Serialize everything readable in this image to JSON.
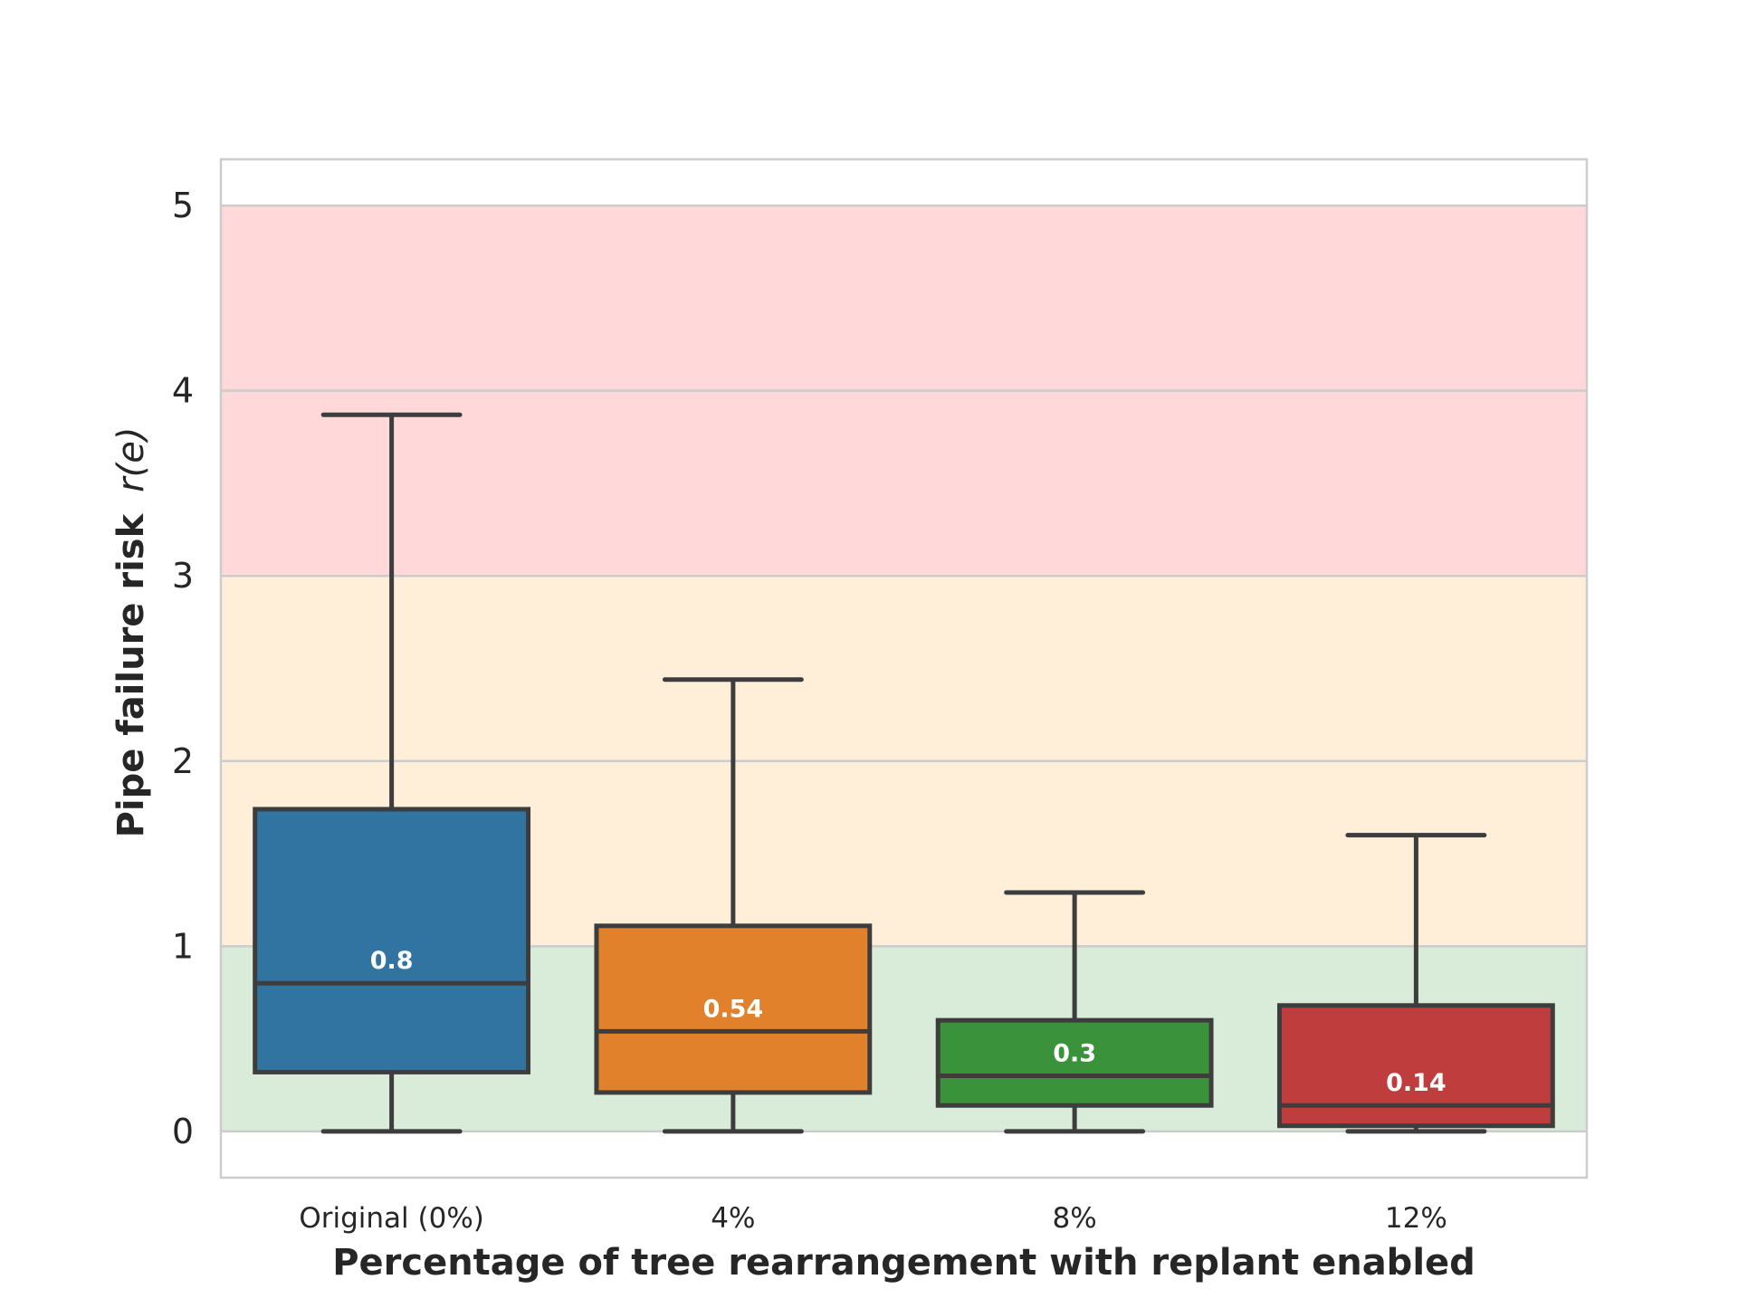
{
  "chart_data": {
    "type": "box",
    "xlabel": "Percentage of tree rearrangement with replant enabled",
    "ylabel_text": "Pipe failure risk",
    "ylabel_math": "r(e)",
    "ylim": [
      -0.25,
      5.25
    ],
    "yticks": [
      "0",
      "1",
      "2",
      "3",
      "4",
      "5"
    ],
    "grid": true,
    "risk_bands": [
      {
        "from": 0,
        "to": 1,
        "color": "#d9ecd9"
      },
      {
        "from": 1,
        "to": 3,
        "color": "#ffefd9"
      },
      {
        "from": 3,
        "to": 5,
        "color": "#ffd9d9"
      }
    ],
    "categories": [
      "Original (0%)",
      "4%",
      "8%",
      "12%"
    ],
    "boxes": [
      {
        "category": "Original (0%)",
        "whisker_low": 0,
        "q1": 0.32,
        "median": 0.8,
        "q3": 1.74,
        "whisker_high": 3.87,
        "label": "0.8",
        "color": "#3274a1"
      },
      {
        "category": "4%",
        "whisker_low": 0,
        "q1": 0.21,
        "median": 0.54,
        "q3": 1.11,
        "whisker_high": 2.44,
        "label": "0.54",
        "color": "#e1812c"
      },
      {
        "category": "8%",
        "whisker_low": 0,
        "q1": 0.14,
        "median": 0.3,
        "q3": 0.6,
        "whisker_high": 1.29,
        "label": "0.3",
        "color": "#3a923a"
      },
      {
        "category": "12%",
        "whisker_low": 0,
        "q1": 0.03,
        "median": 0.14,
        "q3": 0.68,
        "whisker_high": 1.6,
        "label": "0.14",
        "color": "#c03d3e"
      }
    ]
  }
}
